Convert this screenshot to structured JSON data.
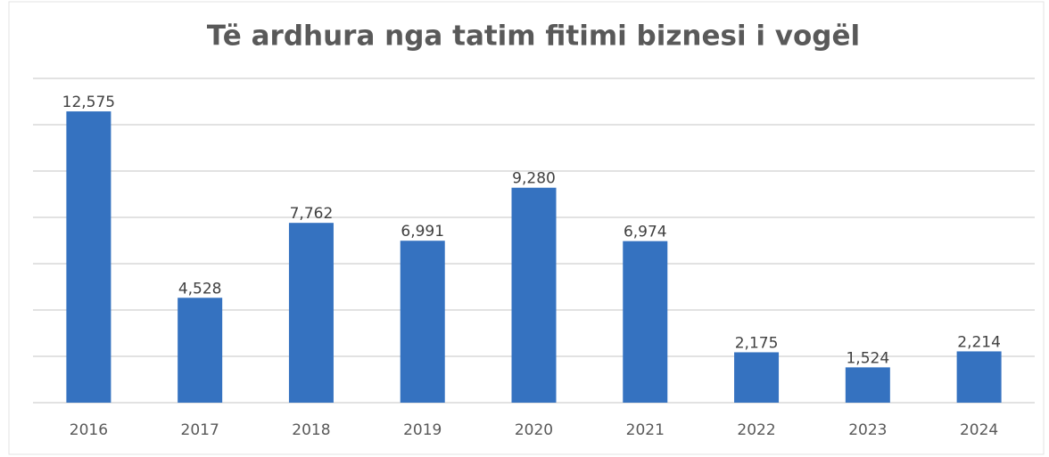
{
  "chart_data": {
    "type": "bar",
    "title": "Të ardhura nga tatim fitimi biznesi i vogël",
    "categories": [
      "2016",
      "2017",
      "2018",
      "2019",
      "2020",
      "2021",
      "2022",
      "2023",
      "2024"
    ],
    "values": [
      12575,
      4528,
      7762,
      6991,
      9280,
      6974,
      2175,
      1524,
      2214
    ],
    "value_labels": [
      "12,575",
      "4,528",
      "7,762",
      "6,991",
      "9,280",
      "6,974",
      "2,175",
      "1,524",
      "2,214"
    ],
    "color": "#3572c0",
    "ylim": [
      0,
      14000
    ],
    "yticks": [
      0,
      2000,
      4000,
      6000,
      8000,
      10000,
      12000,
      14000
    ],
    "grid": true
  }
}
